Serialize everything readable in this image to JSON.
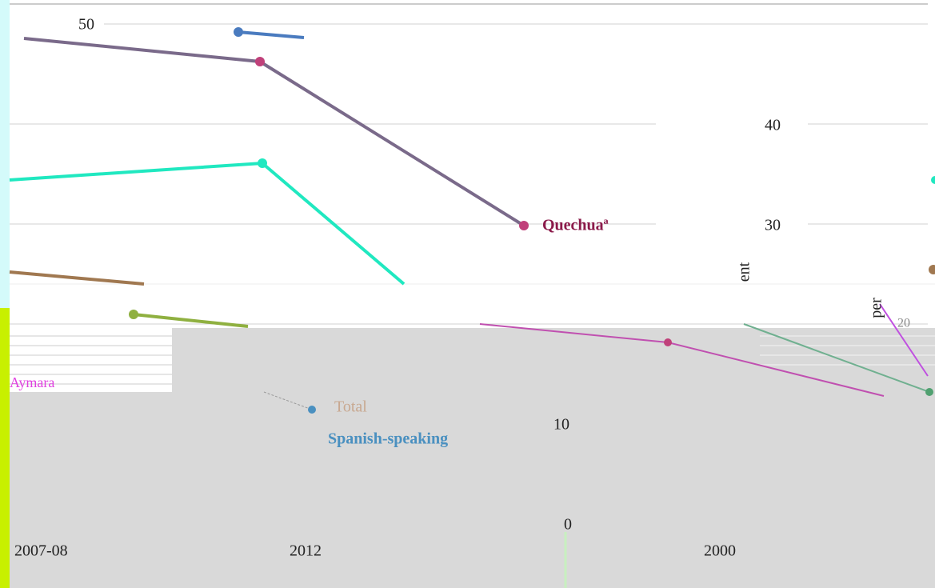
{
  "axis_labels": [
    "50",
    "40",
    "30",
    "10",
    "0"
  ],
  "series_labels": {
    "quechua": "Quechuaª",
    "aymara": "Aymara",
    "total": "Total",
    "spanish": "Spanish-speaking"
  },
  "x_labels": [
    "2007-08",
    "2012",
    "2000"
  ],
  "axis_title_fragments": [
    "ent",
    "per",
    "20"
  ]
}
